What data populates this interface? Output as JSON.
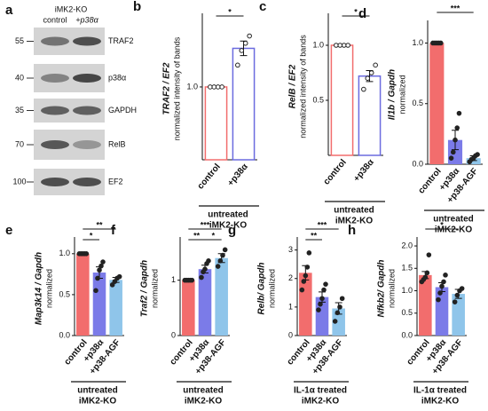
{
  "chart_data": [
    {
      "type": "blot",
      "label": "a",
      "header": "iMK2-KO",
      "lanes": [
        "control",
        "+p38α"
      ],
      "bands": [
        {
          "name": "TRAF2",
          "marker": "55"
        },
        {
          "name": "p38α",
          "marker": "40"
        },
        {
          "name": "GAPDH",
          "marker": "35"
        },
        {
          "name": "RelB",
          "marker": "70"
        },
        {
          "name": "EF2",
          "marker": "100"
        }
      ]
    },
    {
      "type": "bar",
      "label": "b",
      "ylabel": "TRAF2 / EF2",
      "ylabel2": "normalized intensity of bands",
      "filled": false,
      "categories": [
        "control",
        "+p38α"
      ],
      "colors": [
        "#f26d6d",
        "#6b6bdf"
      ],
      "values": [
        1.0,
        1.53
      ],
      "errors": [
        0,
        0.1
      ],
      "points": [
        [
          1,
          1,
          1,
          1
        ],
        [
          1.3,
          1.5,
          1.6,
          1.7
        ]
      ],
      "ylim": [
        0,
        1.95
      ],
      "yticks": [
        {
          "value": 1,
          "label": "1.0"
        }
      ],
      "significance": [
        {
          "text": "*",
          "from": 0,
          "to": 1
        }
      ],
      "group_label": [
        "untreated",
        "iMK2-KO"
      ]
    },
    {
      "type": "bar",
      "label": "c",
      "ylabel": "RelB / EF2",
      "ylabel2": "normalized intensity of bands",
      "filled": false,
      "categories": [
        "control",
        "+p38α"
      ],
      "colors": [
        "#f26d6d",
        "#6b6bdf"
      ],
      "values": [
        1.0,
        0.72
      ],
      "errors": [
        0,
        0.05
      ],
      "points": [
        [
          1,
          1,
          1,
          1
        ],
        [
          0.6,
          0.7,
          0.75,
          0.82
        ]
      ],
      "ylim": [
        0,
        1.25
      ],
      "yticks": [
        {
          "value": 0.5,
          "label": "0.5"
        },
        {
          "value": 1,
          "label": "1.0"
        }
      ],
      "significance": [
        {
          "text": "*",
          "from": 0,
          "to": 1
        }
      ],
      "group_label": [
        "untreated",
        "iMK2-KO"
      ]
    },
    {
      "type": "bar",
      "label": "d",
      "ylabel": "Il1b / Gapdh",
      "ylabel2": "normalized",
      "filled": true,
      "categories": [
        "control",
        "+p38α",
        "+p38-AGF"
      ],
      "colors": [
        "#f26d6d",
        "#7b7be8",
        "#8fc5ea"
      ],
      "values": [
        1.0,
        0.2,
        0.05
      ],
      "errors": [
        0,
        0.08,
        0.02
      ],
      "points": [
        [
          1,
          1,
          1,
          1,
          1
        ],
        [
          0.05,
          0.1,
          0.2,
          0.3,
          0.42
        ],
        [
          0.02,
          0.04,
          0.05,
          0.07,
          0.08
        ]
      ],
      "ylim": [
        0,
        1.15
      ],
      "yticks": [
        {
          "value": 0,
          "label": "0.0"
        },
        {
          "value": 0.5,
          "label": "0.5"
        },
        {
          "value": 1,
          "label": "1.0"
        }
      ],
      "significance": [
        {
          "text": "***",
          "from": 0,
          "to": 2
        }
      ],
      "group_label": [
        "untreated",
        "iMK2-KO"
      ]
    },
    {
      "type": "bar",
      "label": "e",
      "ylabel": "Map3k14 / Gapdh",
      "ylabel2": "normalized",
      "filled": true,
      "categories": [
        "control",
        "+p38α",
        "+p38-AGF"
      ],
      "colors": [
        "#f26d6d",
        "#7b7be8",
        "#8fc5ea"
      ],
      "values": [
        1.0,
        0.77,
        0.68
      ],
      "errors": [
        0,
        0.07,
        0.03
      ],
      "points": [
        [
          1,
          1,
          1,
          1,
          1
        ],
        [
          0.55,
          0.7,
          0.8,
          0.85,
          0.9
        ],
        [
          0.62,
          0.66,
          0.7,
          0.72
        ]
      ],
      "ylim": [
        0,
        1.15
      ],
      "yticks": [
        {
          "value": 0,
          "label": "0.0"
        },
        {
          "value": 0.5,
          "label": "0.5"
        },
        {
          "value": 1,
          "label": "1.0"
        }
      ],
      "significance": [
        {
          "text": "*",
          "from": 0,
          "to": 1
        },
        {
          "text": "**",
          "from": 0,
          "to": 2
        }
      ],
      "group_label": [
        "untreated",
        "iMK2-KO"
      ]
    },
    {
      "type": "bar",
      "label": "f",
      "ylabel": "Traf2 / Gapdh",
      "ylabel2": "normalized",
      "filled": true,
      "categories": [
        "control",
        "+p38α",
        "+p38-AGF"
      ],
      "colors": [
        "#f26d6d",
        "#7b7be8",
        "#8fc5ea"
      ],
      "values": [
        1.0,
        1.2,
        1.4
      ],
      "errors": [
        0,
        0.07,
        0.08
      ],
      "points": [
        [
          1,
          1,
          1,
          1,
          1
        ],
        [
          1.05,
          1.15,
          1.2,
          1.3,
          1.35
        ],
        [
          1.25,
          1.35,
          1.45,
          1.55
        ]
      ],
      "ylim": [
        0,
        1.7
      ],
      "yticks": [
        0,
        1
      ],
      "significance": [
        {
          "text": "***",
          "from": 0,
          "to": 2
        },
        {
          "text": "**",
          "from": 0,
          "to": 1
        },
        {
          "text": "*",
          "from": 1,
          "to": 2
        }
      ],
      "group_label": [
        "untreated",
        "iMK2-KO"
      ]
    },
    {
      "type": "bar",
      "label": "g",
      "ylabel": "Relb/ Gapdh",
      "ylabel2": "normalized",
      "filled": true,
      "categories": [
        "control",
        "+p38α",
        "+p38-AGF"
      ],
      "colors": [
        "#f26d6d",
        "#7b7be8",
        "#8fc5ea"
      ],
      "values": [
        2.2,
        1.35,
        0.95
      ],
      "errors": [
        0.25,
        0.18,
        0.2
      ],
      "points": [
        [
          1.6,
          1.9,
          2.1,
          2.4,
          2.9
        ],
        [
          0.9,
          1.1,
          1.3,
          1.6,
          1.8
        ],
        [
          0.5,
          0.8,
          1.0,
          1.3
        ]
      ],
      "ylim": [
        0,
        3.3
      ],
      "yticks": [
        0,
        1,
        2,
        3
      ],
      "significance": [
        {
          "text": "***",
          "from": 0,
          "to": 2
        },
        {
          "text": "**",
          "from": 0,
          "to": 1
        }
      ],
      "group_label": [
        "IL-1α treated",
        "iMK2-KO"
      ]
    },
    {
      "type": "bar",
      "label": "h",
      "ylabel": "Nfkb2/ Gapdh",
      "ylabel2": "normalized",
      "filled": true,
      "categories": [
        "control",
        "+p38α",
        "+p38-AGF"
      ],
      "colors": [
        "#f26d6d",
        "#7b7be8",
        "#8fc5ea"
      ],
      "values": [
        1.35,
        1.08,
        0.93
      ],
      "errors": [
        0.08,
        0.1,
        0.1
      ],
      "points": [
        [
          1.2,
          1.25,
          1.3,
          1.4,
          1.8
        ],
        [
          0.8,
          0.95,
          1.1,
          1.2,
          1.35
        ],
        [
          0.75,
          0.9,
          1.0,
          1.05
        ]
      ],
      "ylim": [
        0,
        2.1
      ],
      "yticks": [
        {
          "value": 0,
          "label": "0.0"
        },
        {
          "value": 0.5,
          "label": "0.5"
        },
        {
          "value": 1,
          "label": "1.0"
        },
        {
          "value": 1.5,
          "label": "1.5"
        },
        {
          "value": 2,
          "label": "2.0"
        }
      ],
      "significance": [
        {
          "text": "*",
          "from": 0,
          "to": 2
        }
      ],
      "group_label": [
        "IL-1α treated",
        "iMK2-KO"
      ]
    }
  ]
}
